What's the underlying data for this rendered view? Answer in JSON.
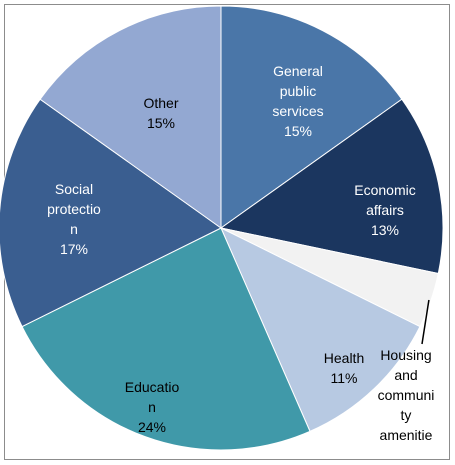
{
  "chart_data": {
    "type": "pie",
    "title": "",
    "slices": [
      {
        "label_lines": [
          "General",
          "public",
          "services"
        ],
        "percent_label": "15%",
        "value": 15,
        "color": "#4a76a8",
        "label_color": "#ffffff"
      },
      {
        "label_lines": [
          "Economic",
          "affairs"
        ],
        "percent_label": "13%",
        "value": 13,
        "color": "#1b365f",
        "label_color": "#ffffff"
      },
      {
        "label_lines": [
          "Housing",
          "and",
          "communi",
          "ty",
          "amenitie"
        ],
        "percent_label": "",
        "value": 4,
        "color": "#f2f2f2",
        "label_color": "#000000"
      },
      {
        "label_lines": [
          "Health"
        ],
        "percent_label": "11%",
        "value": 11,
        "color": "#b7c9e2",
        "label_color": "#000000"
      },
      {
        "label_lines": [
          "Educatio",
          "n"
        ],
        "percent_label": "24%",
        "value": 24,
        "color": "#4099a9",
        "label_color": "#000000"
      },
      {
        "label_lines": [
          "Social",
          "protectio",
          "n"
        ],
        "percent_label": "17%",
        "value": 17,
        "color": "#3a5e90",
        "label_color": "#ffffff"
      },
      {
        "label_lines": [
          "Other"
        ],
        "percent_label": "15%",
        "value": 15,
        "color": "#93a8d2",
        "label_color": "#000000"
      }
    ]
  }
}
